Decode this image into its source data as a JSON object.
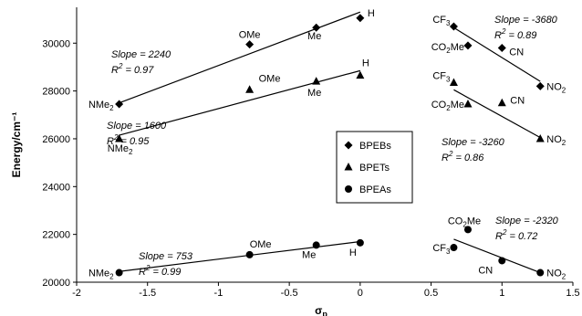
{
  "chart_data": {
    "type": "scatter",
    "xlabel": "σp",
    "ylabel": "Energy/cm⁻¹",
    "xlim": [
      -2,
      1.5
    ],
    "ylim": [
      20000,
      31500
    ],
    "xticks": [
      -2,
      -1.5,
      -1,
      -0.5,
      0,
      0.5,
      1,
      1.5
    ],
    "yticks": [
      20000,
      22000,
      24000,
      26000,
      28000,
      30000
    ],
    "xtick_labels": [
      "-2",
      "-1.5",
      "-1",
      "-0.5",
      "0",
      "0.5",
      "1",
      "1.5"
    ],
    "ytick_labels": [
      "20000",
      "22000",
      "24000",
      "26000",
      "28000",
      "30000"
    ],
    "grid": false,
    "legend_position": "center-right",
    "series": [
      {
        "name": "BPEBs",
        "marker": "diamond",
        "points": [
          {
            "x": -1.7,
            "y": 27450,
            "label": "NMe",
            "sub": "2"
          },
          {
            "x": -0.78,
            "y": 29950,
            "label": "OMe",
            "sub": ""
          },
          {
            "x": -0.31,
            "y": 30650,
            "label": "Me",
            "sub": ""
          },
          {
            "x": 0.0,
            "y": 31050,
            "label": "H",
            "sub": ""
          },
          {
            "x": 0.66,
            "y": 30700,
            "label": "CF",
            "sub": "3"
          },
          {
            "x": 0.76,
            "y": 29900,
            "label": "CO",
            "sub": "2",
            "tail": "Me"
          },
          {
            "x": 1.0,
            "y": 29800,
            "label": "CN",
            "sub": ""
          },
          {
            "x": 1.27,
            "y": 28200,
            "label": "NO",
            "sub": "2"
          }
        ]
      },
      {
        "name": "BPETs",
        "marker": "triangle",
        "points": [
          {
            "x": -1.7,
            "y": 26000,
            "label": "NMe",
            "sub": "2"
          },
          {
            "x": -0.78,
            "y": 28050,
            "label": "OMe",
            "sub": ""
          },
          {
            "x": -0.31,
            "y": 28400,
            "label": "Me",
            "sub": ""
          },
          {
            "x": 0.0,
            "y": 28650,
            "label": "H",
            "sub": ""
          },
          {
            "x": 0.66,
            "y": 28350,
            "label": "CF",
            "sub": "3"
          },
          {
            "x": 0.76,
            "y": 27450,
            "label": "CO",
            "sub": "2",
            "tail": "Me"
          },
          {
            "x": 1.0,
            "y": 27500,
            "label": "CN",
            "sub": ""
          },
          {
            "x": 1.27,
            "y": 26000,
            "label": "NO",
            "sub": "2"
          }
        ]
      },
      {
        "name": "BPEAs",
        "marker": "circle",
        "points": [
          {
            "x": -1.7,
            "y": 20400,
            "label": "NMe",
            "sub": "2"
          },
          {
            "x": -0.78,
            "y": 21150,
            "label": "OMe",
            "sub": ""
          },
          {
            "x": -0.31,
            "y": 21550,
            "label": "Me",
            "sub": ""
          },
          {
            "x": 0.0,
            "y": 21650,
            "label": "H",
            "sub": ""
          },
          {
            "x": 0.66,
            "y": 21450,
            "label": "CF",
            "sub": "3"
          },
          {
            "x": 0.76,
            "y": 22200,
            "label": "CO",
            "sub": "2",
            "tail": "Me"
          },
          {
            "x": 1.0,
            "y": 20900,
            "label": "CN",
            "sub": ""
          },
          {
            "x": 1.27,
            "y": 20400,
            "label": "NO",
            "sub": "2"
          }
        ]
      }
    ],
    "fits": [
      {
        "series": "BPEBs",
        "x1": -1.7,
        "y1": 27500,
        "x2": 0.0,
        "y2": 31300,
        "slope": "Slope = 2240",
        "r2": "R  = 0.97"
      },
      {
        "series": "BPETs",
        "x1": -1.7,
        "y1": 26150,
        "x2": 0.0,
        "y2": 28850,
        "slope": "Slope = 1600",
        "r2": "R  = 0.95"
      },
      {
        "series": "BPEAs",
        "x1": -1.7,
        "y1": 20450,
        "x2": 0.0,
        "y2": 21700,
        "slope": "Slope = 753",
        "r2": "R  = 0.99"
      },
      {
        "series": "BPEBs",
        "x1": 0.66,
        "y1": 30650,
        "x2": 1.27,
        "y2": 28400,
        "slope": "Slope = -3680",
        "r2": "R  = 0.89"
      },
      {
        "series": "BPETs",
        "x1": 0.66,
        "y1": 28050,
        "x2": 1.27,
        "y2": 26050,
        "slope": "Slope = -3260",
        "r2": "R  = 0.86"
      },
      {
        "series": "BPEAs",
        "x1": 0.66,
        "y1": 21800,
        "x2": 1.27,
        "y2": 20400,
        "slope": "Slope = -2320",
        "r2": "R  = 0.72"
      }
    ]
  }
}
